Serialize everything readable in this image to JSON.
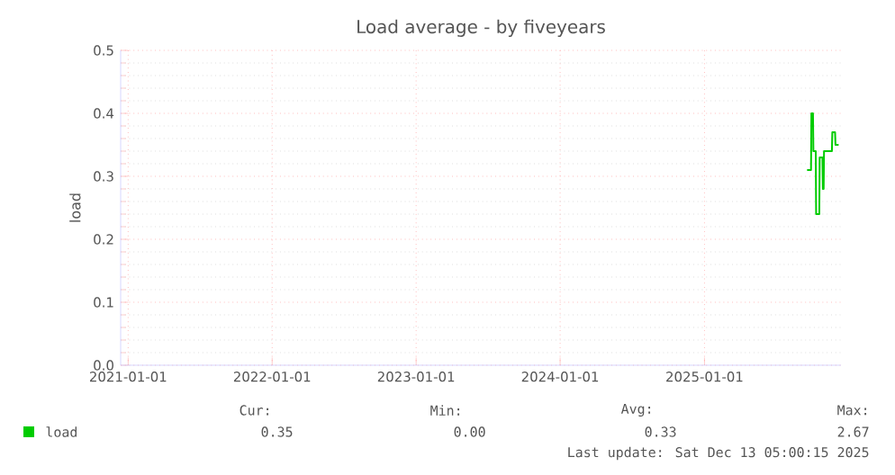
{
  "chart_data": {
    "type": "line",
    "title": "Load average - by fiveyears",
    "ylabel": "load",
    "xlim": [
      "2020-12-13",
      "2025-12-13"
    ],
    "ylim": [
      0,
      0.5
    ],
    "xticks": [
      "2021-01-01",
      "2022-01-01",
      "2023-01-01",
      "2024-01-01",
      "2025-01-01"
    ],
    "yticks": [
      {
        "value": 0,
        "label": "0.0"
      },
      {
        "value": 0.1,
        "label": "0.1"
      },
      {
        "value": 0.2,
        "label": "0.2"
      },
      {
        "value": 0.3,
        "label": "0.3"
      },
      {
        "value": 0.4,
        "label": "0.4"
      },
      {
        "value": 0.5,
        "label": "0.5"
      }
    ],
    "grid": true,
    "legend": "bottom",
    "series": [
      {
        "name": "load",
        "color": "#00cc00",
        "x": [
          "2025-09-18",
          "2025-09-28",
          "2025-09-29",
          "2025-10-03",
          "2025-10-04",
          "2025-10-10",
          "2025-10-11",
          "2025-10-19",
          "2025-10-20",
          "2025-10-27",
          "2025-10-28",
          "2025-10-30",
          "2025-10-31",
          "2025-11-11",
          "2025-11-20",
          "2025-11-21",
          "2025-11-28",
          "2025-11-29",
          "2025-12-07"
        ],
        "values": [
          0.31,
          0.31,
          0.4,
          0.4,
          0.34,
          0.34,
          0.24,
          0.24,
          0.33,
          0.33,
          0.28,
          0.28,
          0.34,
          0.34,
          0.34,
          0.37,
          0.37,
          0.35,
          0.35
        ]
      }
    ],
    "annotations": [
      "Cur:",
      "Min:",
      "Avg:",
      "Max:",
      "0.35",
      "0.00",
      "0.33",
      "2.67",
      "Last update: Sat Dec 13 05:00:15 2025"
    ]
  }
}
